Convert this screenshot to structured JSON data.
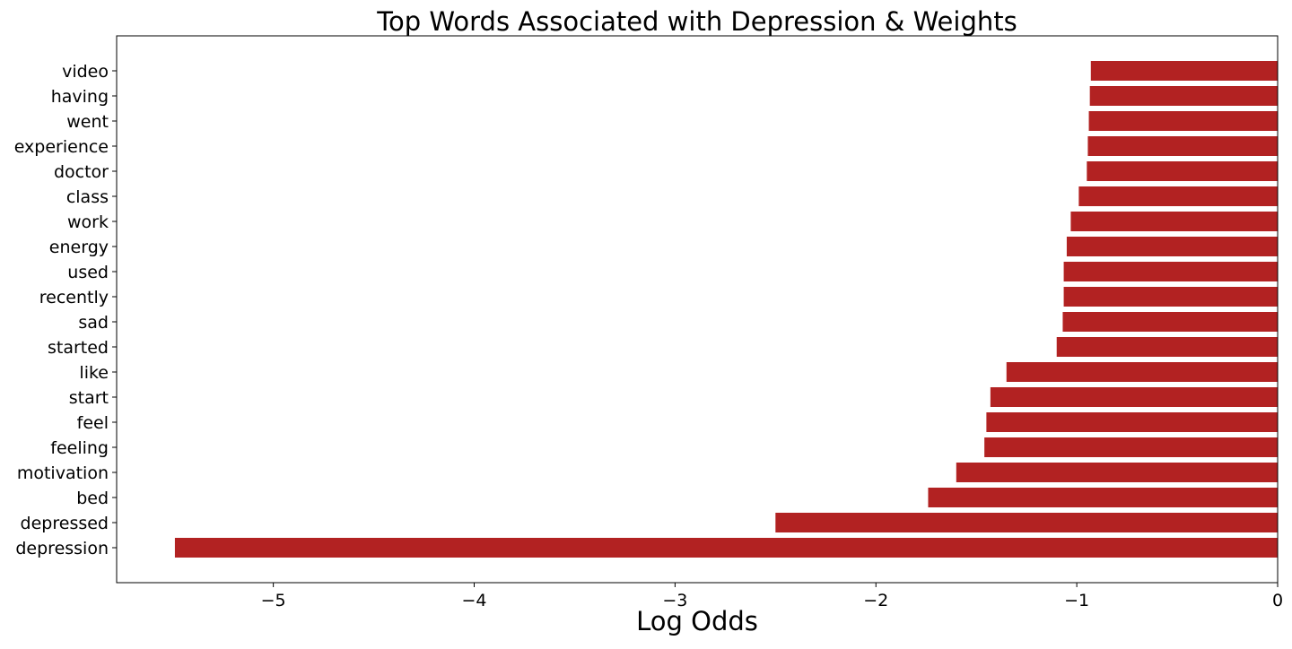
{
  "chart_data": {
    "type": "bar",
    "orientation": "horizontal",
    "title": "Top Words Associated with Depression & Weights",
    "xlabel": "Log Odds",
    "ylabel": "",
    "xlim": [
      -5.78,
      0
    ],
    "xticks": [
      -5,
      -4,
      -3,
      -2,
      -1,
      0
    ],
    "xtick_labels": [
      "−5",
      "−4",
      "−3",
      "−2",
      "−1",
      "0"
    ],
    "grid": false,
    "bar_color": "#b22222",
    "categories": [
      "depression",
      "depressed",
      "bed",
      "motivation",
      "feeling",
      "feel",
      "start",
      "like",
      "started",
      "sad",
      "recently",
      "used",
      "energy",
      "work",
      "class",
      "doctor",
      "experience",
      "went",
      "having",
      "video"
    ],
    "values": [
      -5.49,
      -2.5,
      -1.74,
      -1.6,
      -1.46,
      -1.45,
      -1.43,
      -1.35,
      -1.1,
      -1.07,
      -1.065,
      -1.065,
      -1.05,
      -1.03,
      -0.99,
      -0.95,
      -0.945,
      -0.94,
      -0.935,
      -0.93
    ]
  }
}
